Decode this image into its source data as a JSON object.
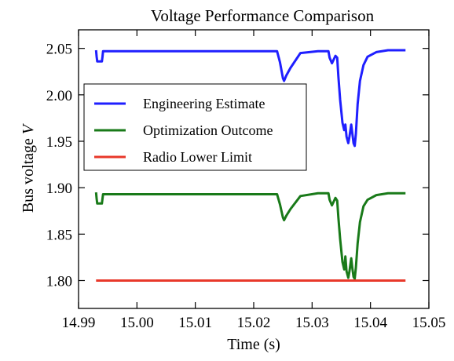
{
  "chart_data": {
    "type": "line",
    "title": "Voltage Performance Comparison",
    "xlabel": "Time (s)",
    "ylabel_text": "Bus voltage ",
    "ylabel_var": "V",
    "xlim": [
      14.99,
      15.05
    ],
    "ylim": [
      1.77,
      2.07
    ],
    "x_ticks": [
      14.99,
      15.0,
      15.01,
      15.02,
      15.03,
      15.04,
      15.05
    ],
    "x_tick_labels": [
      "14.99",
      "15.00",
      "15.01",
      "15.02",
      "15.03",
      "15.04",
      "15.05"
    ],
    "y_ticks": [
      1.8,
      1.85,
      1.9,
      1.95,
      2.0,
      2.05
    ],
    "y_tick_labels": [
      "1.80",
      "1.85",
      "1.90",
      "1.95",
      "2.00",
      "2.05"
    ],
    "grid": false,
    "legend_position": "upper-left",
    "series": [
      {
        "name": "Engineering Estimate",
        "color": "#1f1fff",
        "x": [
          14.993,
          14.9931,
          14.9932,
          14.994,
          14.9941,
          14.9942,
          15.024,
          15.0245,
          15.025,
          15.0252,
          15.0256,
          15.0263,
          15.028,
          15.031,
          15.0328,
          15.033,
          15.0334,
          15.034,
          15.0343,
          15.0345,
          15.0348,
          15.0352,
          15.0355,
          15.0357,
          15.0359,
          15.0362,
          15.0364,
          15.0367,
          15.0369,
          15.0371,
          15.0373,
          15.0375,
          15.0378,
          15.0382,
          15.0388,
          15.0395,
          15.041,
          15.043,
          15.046
        ],
        "y": [
          2.048,
          2.041,
          2.036,
          2.036,
          2.041,
          2.047,
          2.047,
          2.035,
          2.018,
          2.015,
          2.021,
          2.029,
          2.045,
          2.047,
          2.047,
          2.04,
          2.034,
          2.042,
          2.04,
          2.02,
          1.995,
          1.97,
          1.962,
          1.968,
          1.955,
          1.948,
          1.955,
          1.968,
          1.958,
          1.948,
          1.945,
          1.958,
          1.99,
          2.015,
          2.032,
          2.041,
          2.046,
          2.048,
          2.048
        ]
      },
      {
        "name": "Optimization Outcome",
        "color": "#197a19",
        "x": [
          14.993,
          14.9931,
          14.9932,
          14.994,
          14.9941,
          14.9942,
          15.024,
          15.0245,
          15.025,
          15.0252,
          15.0256,
          15.0263,
          15.028,
          15.031,
          15.0328,
          15.033,
          15.0334,
          15.034,
          15.0343,
          15.0345,
          15.0348,
          15.0352,
          15.0355,
          15.0357,
          15.0359,
          15.0362,
          15.0364,
          15.0367,
          15.0369,
          15.0371,
          15.0373,
          15.0375,
          15.0378,
          15.0382,
          15.0388,
          15.0395,
          15.041,
          15.043,
          15.046
        ],
        "y": [
          1.895,
          1.888,
          1.883,
          1.883,
          1.888,
          1.893,
          1.893,
          1.882,
          1.868,
          1.865,
          1.87,
          1.877,
          1.891,
          1.894,
          1.894,
          1.887,
          1.881,
          1.889,
          1.886,
          1.868,
          1.845,
          1.82,
          1.812,
          1.826,
          1.81,
          1.803,
          1.81,
          1.824,
          1.813,
          1.804,
          1.802,
          1.814,
          1.84,
          1.863,
          1.88,
          1.887,
          1.892,
          1.894,
          1.894
        ]
      },
      {
        "name": "Radio Lower Limit",
        "color": "#e8382a",
        "x": [
          14.993,
          15.046
        ],
        "y": [
          1.8,
          1.8
        ]
      }
    ]
  }
}
